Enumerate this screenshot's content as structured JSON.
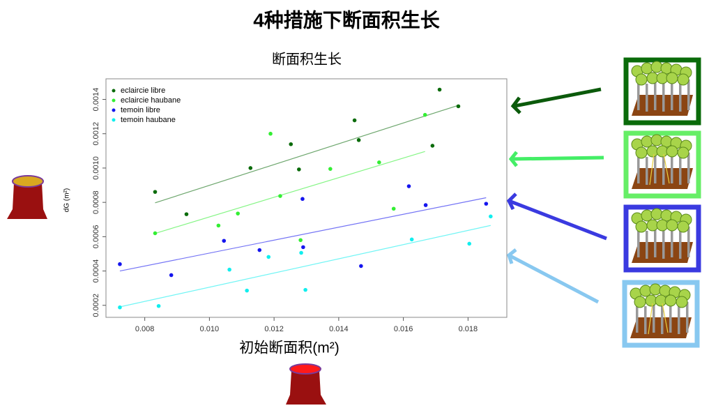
{
  "slide_title": "4种措施下断面积生长",
  "chart_data": {
    "type": "scatter",
    "title": "断面积生长",
    "xlabel": "初始断面积(m²)",
    "ylabel": "dG (m²)",
    "xlim": [
      0.0068,
      0.0192
    ],
    "ylim": [
      0.00013,
      0.00152
    ],
    "xticks": [
      0.008,
      {
        "value": 0.01,
        "label": "0.010"
      },
      0.012,
      0.014,
      0.016,
      0.018
    ],
    "yticks": [
      0.0002,
      0.0004,
      0.0006,
      0.0008,
      {
        "value": 0.001,
        "label": "0.0010"
      },
      0.0012,
      0.0014
    ],
    "legend": "upper left",
    "trendline": true,
    "series": [
      {
        "name": "eclaircie libre",
        "color": "#0b6b0b",
        "x": [
          0.00832,
          0.00929,
          0.01127,
          0.01252,
          0.01277,
          0.01449,
          0.01462,
          0.0169,
          0.01712,
          0.0177
        ],
        "values": [
          0.000861,
          0.000731,
          0.001,
          0.001139,
          0.000992,
          0.001278,
          0.001163,
          0.00113,
          0.001457,
          0.00136
        ]
      },
      {
        "name": "eclaircie haubane",
        "color": "#33ee33",
        "x": [
          0.00832,
          0.01028,
          0.01088,
          0.01189,
          0.01219,
          0.01282,
          0.01374,
          0.01525,
          0.0157,
          0.01667
        ],
        "values": [
          0.00062,
          0.000665,
          0.000735,
          0.0012,
          0.000837,
          0.00058,
          0.000995,
          0.001033,
          0.000763,
          0.00131
        ]
      },
      {
        "name": "temoin libre",
        "color": "#1515ee",
        "x": [
          0.00723,
          0.00882,
          0.01045,
          0.01155,
          0.01288,
          0.0129,
          0.01469,
          0.01617,
          0.01669,
          0.01856
        ],
        "values": [
          0.00044,
          0.000376,
          0.000576,
          0.000522,
          0.00082,
          0.000539,
          0.000429,
          0.000894,
          0.000784,
          0.000792
        ]
      },
      {
        "name": "temoin haubane",
        "color": "#11eeee",
        "x": [
          0.00723,
          0.00843,
          0.01062,
          0.01116,
          0.01183,
          0.01284,
          0.01297,
          0.01626,
          0.01804,
          0.0187
        ],
        "values": [
          0.000188,
          0.000196,
          0.000408,
          0.000286,
          0.000482,
          0.000506,
          0.00029,
          0.000584,
          0.000559,
          0.000718
        ]
      }
    ]
  }
}
